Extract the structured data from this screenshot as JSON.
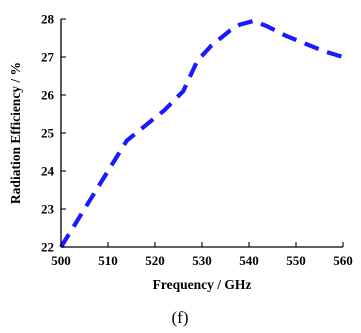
{
  "caption": "(f)",
  "colors": {
    "series": "#1a1aff",
    "axis": "#000000"
  },
  "chart_data": {
    "type": "line",
    "title": "",
    "xlabel": "Frequency / GHz",
    "ylabel": "Radiation Efficiency / %",
    "xlim": [
      500,
      560
    ],
    "ylim": [
      22,
      28
    ],
    "xticks": [
      "500",
      "510",
      "520",
      "530",
      "540",
      "550",
      "560"
    ],
    "yticks": [
      "22",
      "23",
      "24",
      "25",
      "26",
      "27",
      "28"
    ],
    "grid": false,
    "legend": "none",
    "line_style": "dashed",
    "series": [
      {
        "x": [
          500,
          505,
          510,
          514,
          518,
          522,
          526,
          529,
          532,
          536,
          538,
          541,
          544,
          548,
          552,
          556,
          560
        ],
        "y": [
          22.0,
          23.0,
          24.0,
          24.8,
          25.2,
          25.6,
          26.1,
          26.9,
          27.3,
          27.7,
          27.85,
          27.95,
          27.8,
          27.55,
          27.35,
          27.15,
          27.0
        ]
      }
    ]
  }
}
